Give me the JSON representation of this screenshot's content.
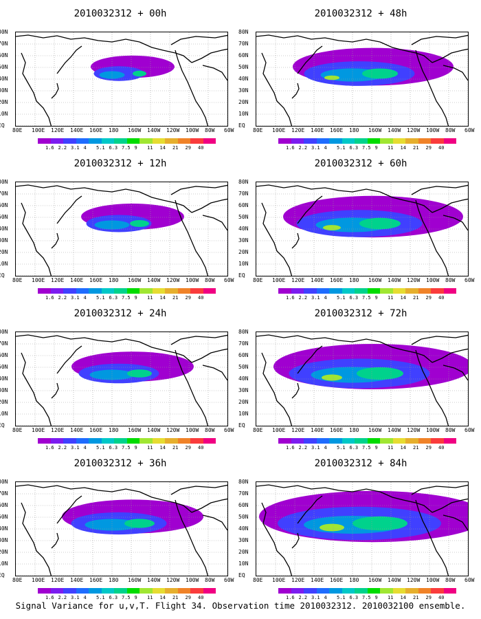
{
  "panels": [
    {
      "title": "2010032312 + 00h",
      "intensity": 0.15
    },
    {
      "title": "2010032312 + 48h",
      "intensity": 0.55
    },
    {
      "title": "2010032312 + 12h",
      "intensity": 0.25
    },
    {
      "title": "2010032312 + 60h",
      "intensity": 0.65
    },
    {
      "title": "2010032312 + 24h",
      "intensity": 0.35
    },
    {
      "title": "2010032312 + 72h",
      "intensity": 0.75
    },
    {
      "title": "2010032312 + 36h",
      "intensity": 0.45
    },
    {
      "title": "2010032312 + 84h",
      "intensity": 0.9
    }
  ],
  "y_labels": [
    "80N",
    "70N",
    "60N",
    "50N",
    "40N",
    "30N",
    "20N",
    "10N",
    "EQ"
  ],
  "x_labels": [
    "80E",
    "100E",
    "120E",
    "140E",
    "160E",
    "180",
    "160W",
    "140W",
    "120W",
    "100W",
    "80W",
    "60W"
  ],
  "colorbar": {
    "labels": [
      "1.6",
      "2.2",
      "3.1",
      "4",
      "5.1",
      "6.3",
      "7.5",
      "9",
      "11",
      "14",
      "21",
      "29",
      "40"
    ],
    "colors": [
      "#a000d0",
      "#7c1cf0",
      "#4040ff",
      "#1e6cff",
      "#0098e0",
      "#00c8c8",
      "#00d28c",
      "#00dc00",
      "#a0e632",
      "#e6dc32",
      "#e6af2d",
      "#f08228",
      "#fa3c3c",
      "#f00082"
    ]
  },
  "caption": "Signal Variance for u,v,T. Flight 34. Observation time 2010032312. 2010032100 ensemble."
}
